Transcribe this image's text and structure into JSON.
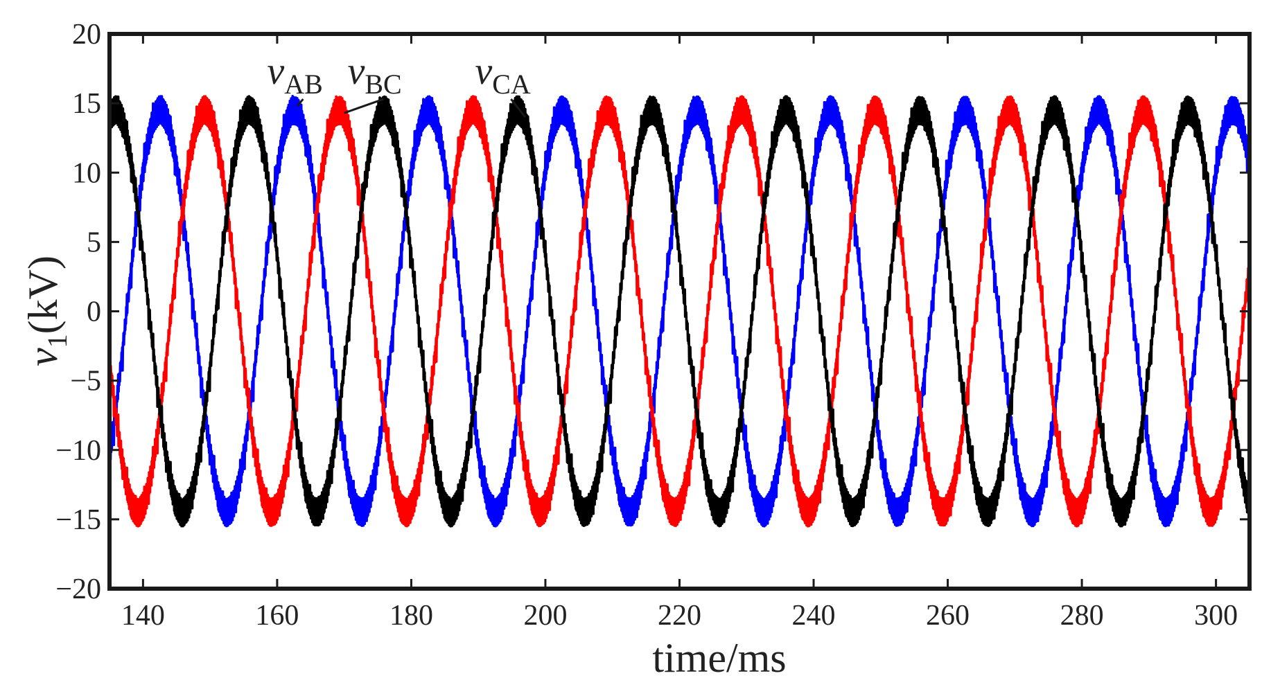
{
  "chart_data": {
    "type": "line",
    "xlabel": "time/ms",
    "ylabel": {
      "main": "v",
      "sub": "1",
      "suffix": "(kV)"
    },
    "xlim": [
      135,
      305
    ],
    "ylim": [
      -20,
      20
    ],
    "x_ticks": [
      140,
      160,
      180,
      200,
      220,
      240,
      260,
      280,
      300
    ],
    "x_tick_labels": [
      "140",
      "160",
      "180",
      "200",
      "220",
      "240",
      "260",
      "280",
      "300"
    ],
    "y_ticks": [
      -20,
      -15,
      -10,
      -5,
      0,
      5,
      10,
      15,
      20
    ],
    "y_tick_labels": [
      "−20",
      "−15",
      "−10",
      "−5",
      "0",
      "5",
      "10",
      "15",
      "20"
    ],
    "grid": false,
    "frequency_hz": 50,
    "amplitude_kv": 14.5,
    "series": [
      {
        "name": "vAB",
        "label_main": "v",
        "label_sub": "AB",
        "color": "#0000ff",
        "phase_deg": 43.9
      },
      {
        "name": "vBC",
        "label_main": "v",
        "label_sub": "BC",
        "color": "#ff0000",
        "phase_deg": -76.1
      },
      {
        "name": "vCA",
        "label_main": "v",
        "label_sub": "CA",
        "color": "#000000",
        "phase_deg": 163.9
      }
    ],
    "annotations": [
      {
        "series": "vAB",
        "text_x": 158.5,
        "text_y": 16.4,
        "arrow_to": [
          163,
          14.8
        ]
      },
      {
        "series": "vBC",
        "text_x": 170.5,
        "text_y": 16.4,
        "arrow_to": [
          170,
          14.3
        ]
      },
      {
        "series": "vCA",
        "text_x": 189.5,
        "text_y": 16.4,
        "arrow_to": [
          197,
          14.0
        ]
      }
    ]
  }
}
